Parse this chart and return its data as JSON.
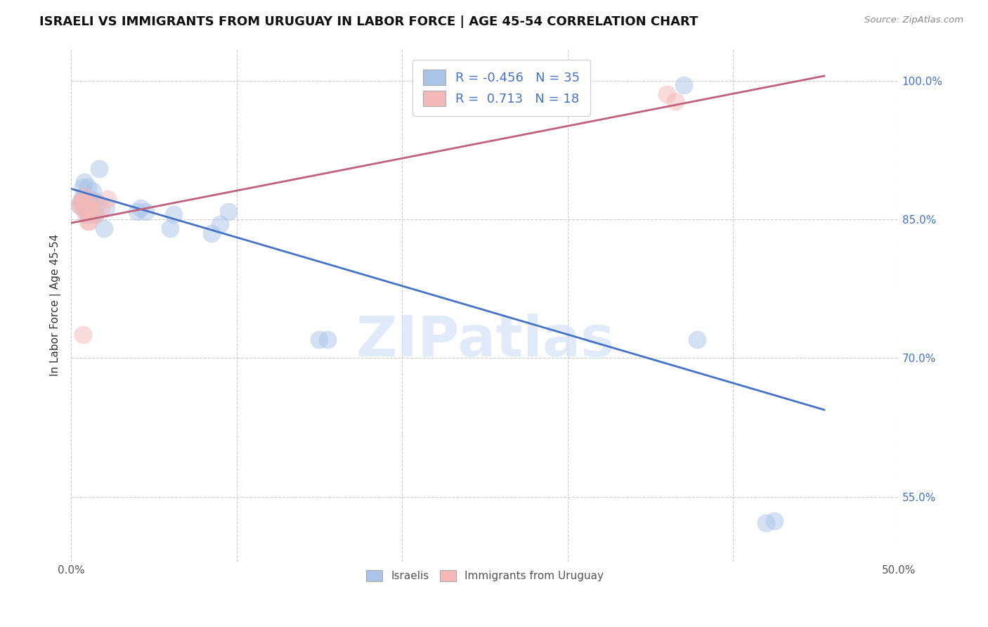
{
  "title": "ISRAELI VS IMMIGRANTS FROM URUGUAY IN LABOR FORCE | AGE 45-54 CORRELATION CHART",
  "source": "Source: ZipAtlas.com",
  "ylabel": "In Labor Force | Age 45-54",
  "xlim": [
    0.0,
    0.5
  ],
  "ylim": [
    0.48,
    1.035
  ],
  "xticks": [
    0.0,
    0.1,
    0.2,
    0.3,
    0.4,
    0.5
  ],
  "xticklabels": [
    "0.0%",
    "",
    "",
    "",
    "",
    "50.0%"
  ],
  "yticks_right": [
    0.55,
    0.7,
    0.85,
    1.0
  ],
  "yticklabels_right": [
    "55.0%",
    "70.0%",
    "85.0%",
    "100.0%"
  ],
  "watermark": "ZIPatlas",
  "blue_color": "#aac4e8",
  "pink_color": "#f4b8b8",
  "blue_line_color": "#4472c4",
  "pink_line_color": "#c0607a",
  "legend_blue_r": "-0.456",
  "legend_blue_n": "35",
  "legend_pink_r": "0.713",
  "legend_pink_n": "18",
  "blue_scatter_x": [
    0.005,
    0.006,
    0.007,
    0.007,
    0.008,
    0.008,
    0.009,
    0.009,
    0.01,
    0.01,
    0.011,
    0.012,
    0.012,
    0.013,
    0.013,
    0.014,
    0.015,
    0.016,
    0.017,
    0.02,
    0.021,
    0.04,
    0.042,
    0.045,
    0.06,
    0.062,
    0.085,
    0.09,
    0.095,
    0.15,
    0.155,
    0.37,
    0.378,
    0.42,
    0.425
  ],
  "blue_scatter_y": [
    0.865,
    0.87,
    0.875,
    0.885,
    0.86,
    0.89,
    0.87,
    0.862,
    0.885,
    0.855,
    0.868,
    0.862,
    0.872,
    0.855,
    0.88,
    0.87,
    0.855,
    0.868,
    0.905,
    0.84,
    0.862,
    0.858,
    0.862,
    0.858,
    0.84,
    0.855,
    0.835,
    0.845,
    0.858,
    0.72,
    0.72,
    0.995,
    0.72,
    0.522,
    0.524
  ],
  "pink_scatter_x": [
    0.005,
    0.006,
    0.007,
    0.007,
    0.008,
    0.008,
    0.009,
    0.01,
    0.01,
    0.011,
    0.012,
    0.012,
    0.013,
    0.015,
    0.018,
    0.022,
    0.36,
    0.365
  ],
  "pink_scatter_y": [
    0.865,
    0.868,
    0.725,
    0.87,
    0.862,
    0.875,
    0.855,
    0.862,
    0.848,
    0.848,
    0.858,
    0.862,
    0.868,
    0.855,
    0.862,
    0.872,
    0.985,
    0.978
  ],
  "blue_trend_x": [
    0.0,
    0.455
  ],
  "blue_trend_y": [
    0.883,
    0.644
  ],
  "pink_trend_x": [
    0.0,
    0.455
  ],
  "pink_trend_y": [
    0.846,
    1.005
  ],
  "dot_size": 320,
  "dot_alpha": 0.5,
  "background_color": "#ffffff",
  "grid_color": "#cccccc",
  "title_fontsize": 13,
  "axis_label_fontsize": 11,
  "tick_fontsize": 11,
  "legend_fontsize": 13
}
